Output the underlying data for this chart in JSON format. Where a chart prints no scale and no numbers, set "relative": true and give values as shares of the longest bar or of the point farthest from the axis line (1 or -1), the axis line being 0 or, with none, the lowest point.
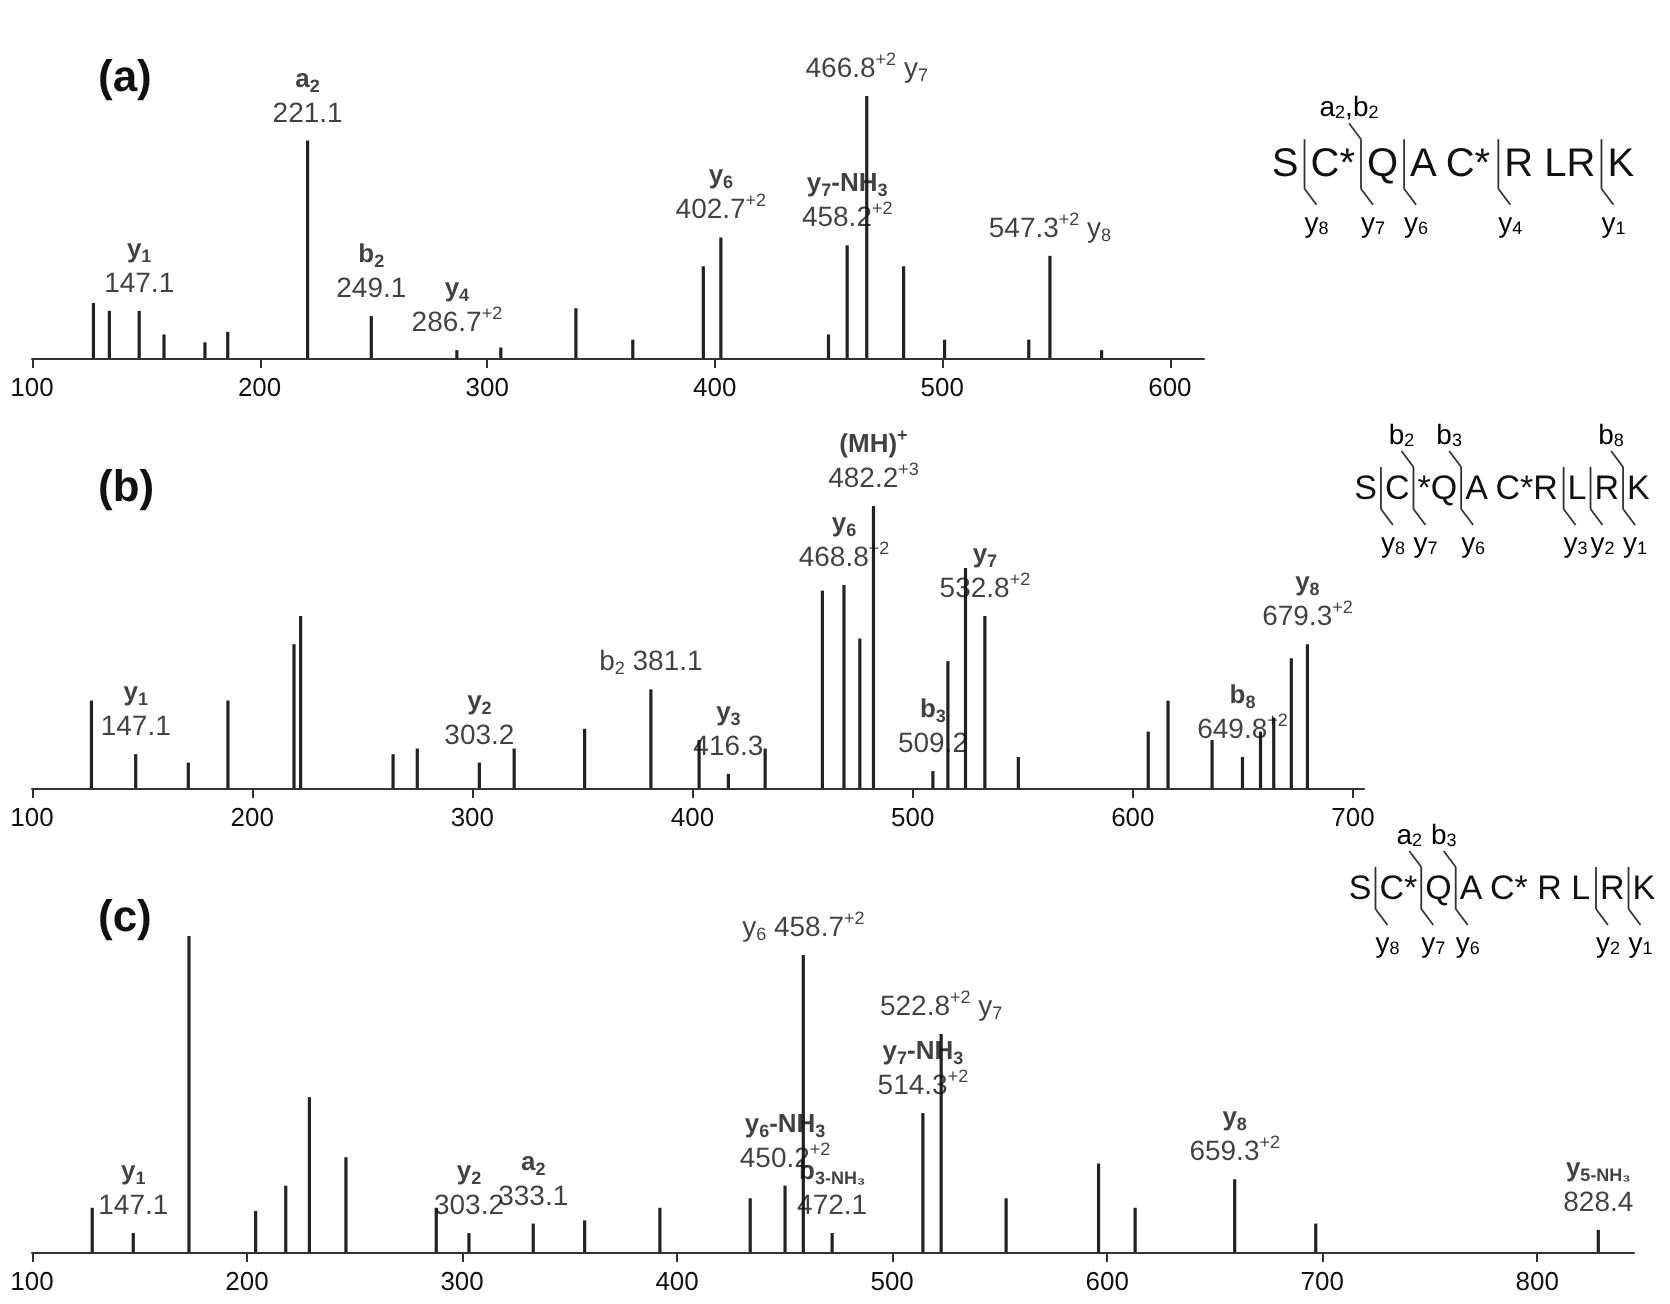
{
  "chart_data": [
    {
      "type": "bar",
      "title": "(a)",
      "relative": true,
      "color": "#222222",
      "xlim": [
        100,
        615
      ],
      "xticks": [
        100,
        200,
        300,
        400,
        500,
        600
      ],
      "x": [
        127,
        134,
        147.1,
        158,
        176,
        186,
        221.1,
        249.1,
        286.7,
        306,
        339,
        364,
        395,
        402.7,
        450,
        458.2,
        466.8,
        483,
        501,
        538,
        547.3,
        570
      ],
      "values": [
        0.21,
        0.18,
        0.18,
        0.09,
        0.06,
        0.1,
        0.83,
        0.16,
        0.03,
        0.04,
        0.19,
        0.07,
        0.35,
        0.46,
        0.09,
        0.43,
        1,
        0.35,
        0.07,
        0.07,
        0.39,
        0.03
      ],
      "annotations": [
        {
          "text": "y$_{1}$\n147.1",
          "x": 147.1,
          "y": 0.18
        },
        {
          "text": "a$_{2}$\n221.1",
          "x": 221.1,
          "y": 0.83
        },
        {
          "text": "b$_{2}$\n249.1",
          "x": 249.1,
          "y": 0.16
        },
        {
          "text": "y$_{4}$\n286.7$^{+2}$",
          "x": 286.7,
          "y": 0.03
        },
        {
          "text": "y$_{6}$\n402.7$^{+2}$",
          "x": 402.7,
          "y": 0.46
        },
        {
          "text": "y$_{7}$-NH$_{3}$\n458.2$^{+2}$",
          "x": 458.2,
          "y": 0.43
        },
        {
          "text": "466.8$^{+2}$ y$_{7}$",
          "x": 466.8,
          "y": 1
        },
        {
          "text": "547.3$^{+2}$ y$_{8}$",
          "x": 547.3,
          "y": 0.39
        }
      ]
    },
    {
      "type": "other",
      "categories": [
        "S",
        "C*",
        "Q",
        "A C*",
        "R LR",
        "K"
      ],
      "annotations": [
        {
          "text": "y$_{8}$",
          "x": "C*",
          "y": "bottom"
        },
        {
          "text": "a$_{2}$,b$_{2}$",
          "x": "Q",
          "y": "top"
        },
        {
          "text": "y$_{7}$",
          "x": "Q",
          "y": "bottom"
        },
        {
          "text": "y$_{6}$",
          "x": "A C*",
          "y": "bottom"
        },
        {
          "text": "y$_{4}$",
          "x": "R LR",
          "y": "bottom"
        },
        {
          "text": "y$_{1}$",
          "x": "K",
          "y": "bottom"
        }
      ]
    },
    {
      "type": "bar",
      "title": "(b)",
      "relative": true,
      "color": "#222222",
      "xlim": [
        100,
        705
      ],
      "xticks": [
        100,
        200,
        300,
        400,
        500,
        600,
        700
      ],
      "x": [
        127,
        147.1,
        171,
        189,
        219,
        222,
        264,
        275,
        303.2,
        319,
        351,
        381.1,
        403,
        416.3,
        433,
        459,
        468.8,
        476,
        482.2,
        509.2,
        516,
        524,
        532.8,
        548,
        607,
        616,
        636,
        649.8,
        658,
        664,
        672,
        679.3
      ],
      "values": [
        0.31,
        0.12,
        0.09,
        0.31,
        0.51,
        0.61,
        0.12,
        0.14,
        0.09,
        0.14,
        0.21,
        0.35,
        0.17,
        0.05,
        0.14,
        0.7,
        0.72,
        0.53,
        1,
        0.06,
        0.45,
        0.78,
        0.61,
        0.11,
        0.2,
        0.31,
        0.17,
        0.11,
        0.2,
        0.25,
        0.46,
        0.51
      ],
      "annotations": [
        {
          "text": "y$_{1}$\n147.1",
          "x": 147.1,
          "y": 0.12
        },
        {
          "text": "y$_{2}$\n303.2",
          "x": 303.2,
          "y": 0.09
        },
        {
          "text": "b$_{2}$ 381.1",
          "x": 381.1,
          "y": 0.35
        },
        {
          "text": "y$_{3}$\n416.3",
          "x": 416.3,
          "y": 0.05
        },
        {
          "text": "y$_{6}$\n468.8$^{+2}$",
          "x": 468.8,
          "y": 0.72
        },
        {
          "text": "(MH)$^{+}$\n482.2$^{+3}$",
          "x": 482.2,
          "y": 1
        },
        {
          "text": "b$_{3}$\n509.2",
          "x": 509.2,
          "y": 0.06
        },
        {
          "text": "y$_{7}$\n532.8$^{+2}$",
          "x": 532.8,
          "y": 0.61
        },
        {
          "text": "b$_{8}$\n649.8$^{+2}$",
          "x": 649.8,
          "y": 0.11
        },
        {
          "text": "y$_{8}$\n679.3$^{+2}$",
          "x": 679.3,
          "y": 0.51
        }
      ]
    },
    {
      "type": "other",
      "categories": [
        "S",
        "C",
        "*Q",
        "A C*R",
        "L",
        "R",
        "K"
      ],
      "annotations": [
        {
          "text": "y$_{8}$",
          "x": "C",
          "y": "bottom"
        },
        {
          "text": "b$_{2}$",
          "x": "*Q",
          "y": "top"
        },
        {
          "text": "y$_{7}$",
          "x": "*Q",
          "y": "bottom"
        },
        {
          "text": "b$_{3}$",
          "x": "A C*R",
          "y": "top"
        },
        {
          "text": "y$_{6}$",
          "x": "A C*R",
          "y": "bottom"
        },
        {
          "text": "y$_{3}$",
          "x": "L",
          "y": "bottom"
        },
        {
          "text": "y$_{2}$",
          "x": "R",
          "y": "bottom"
        },
        {
          "text": "b$_{8}$",
          "x": "K",
          "y": "top"
        },
        {
          "text": "y$_{1}$",
          "x": "K",
          "y": "bottom"
        }
      ]
    },
    {
      "type": "bar",
      "title": "(c)",
      "relative": true,
      "color": "#222222",
      "xlim": [
        100,
        845
      ],
      "xticks": [
        100,
        200,
        300,
        400,
        500,
        600,
        700,
        800
      ],
      "x": [
        128,
        147.1,
        173,
        204,
        218,
        229,
        246,
        288,
        303.2,
        333.1,
        357,
        392,
        434,
        450.2,
        458.7,
        472.1,
        514.3,
        522.8,
        553,
        596,
        613,
        659.3,
        697,
        828.4
      ],
      "values": [
        0.14,
        0.06,
        1,
        0.13,
        0.21,
        0.49,
        0.3,
        0.14,
        0.06,
        0.09,
        0.1,
        0.14,
        0.17,
        0.21,
        0.94,
        0.06,
        0.44,
        0.69,
        0.17,
        0.28,
        0.14,
        0.23,
        0.09,
        0.07
      ],
      "annotations": [
        {
          "text": "y$_{1}$\n147.1",
          "x": 147.1,
          "y": 0.06
        },
        {
          "text": "y$_{2}$\n303.2",
          "x": 303.2,
          "y": 0.06
        },
        {
          "text": "a$_{2}$\n333.1",
          "x": 333.1,
          "y": 0.09
        },
        {
          "text": "y$_{6}$-NH$_{3}$\n450.2$^{+2}$",
          "x": 450.2,
          "y": 0.21
        },
        {
          "text": "y$_{6}$ 458.7$^{+2}$",
          "x": 458.7,
          "y": 0.94
        },
        {
          "text": "b$_{3-NH₃}$\n472.1",
          "x": 472.1,
          "y": 0.06
        },
        {
          "text": "y$_{7}$-NH$_{3}$\n514.3$^{+2}$",
          "x": 514.3,
          "y": 0.44
        },
        {
          "text": "522.8$^{+2}$ y$_{7}$",
          "x": 522.8,
          "y": 0.69
        },
        {
          "text": "y$_{8}$\n659.3$^{+2}$",
          "x": 659.3,
          "y": 0.23
        },
        {
          "text": "y$_{5-NH₃}$\n828.4",
          "x": 828.4,
          "y": 0.07
        }
      ]
    },
    {
      "type": "other",
      "categories": [
        "S",
        "C*",
        "Q",
        "A C* R L",
        "R",
        "K"
      ],
      "annotations": [
        {
          "text": "y$_{8}$",
          "x": "C*",
          "y": "bottom"
        },
        {
          "text": "a$_{2}$",
          "x": "Q",
          "y": "top"
        },
        {
          "text": "y$_{7}$",
          "x": "Q",
          "y": "bottom"
        },
        {
          "text": "b$_{3}$",
          "x": "A C* R L",
          "y": "top"
        },
        {
          "text": "y$_{6}$",
          "x": "A C* R L",
          "y": "bottom"
        },
        {
          "text": "y$_{2}$",
          "x": "R",
          "y": "bottom"
        },
        {
          "text": "y$_{1}$",
          "x": "K",
          "y": "bottom"
        }
      ]
    }
  ]
}
